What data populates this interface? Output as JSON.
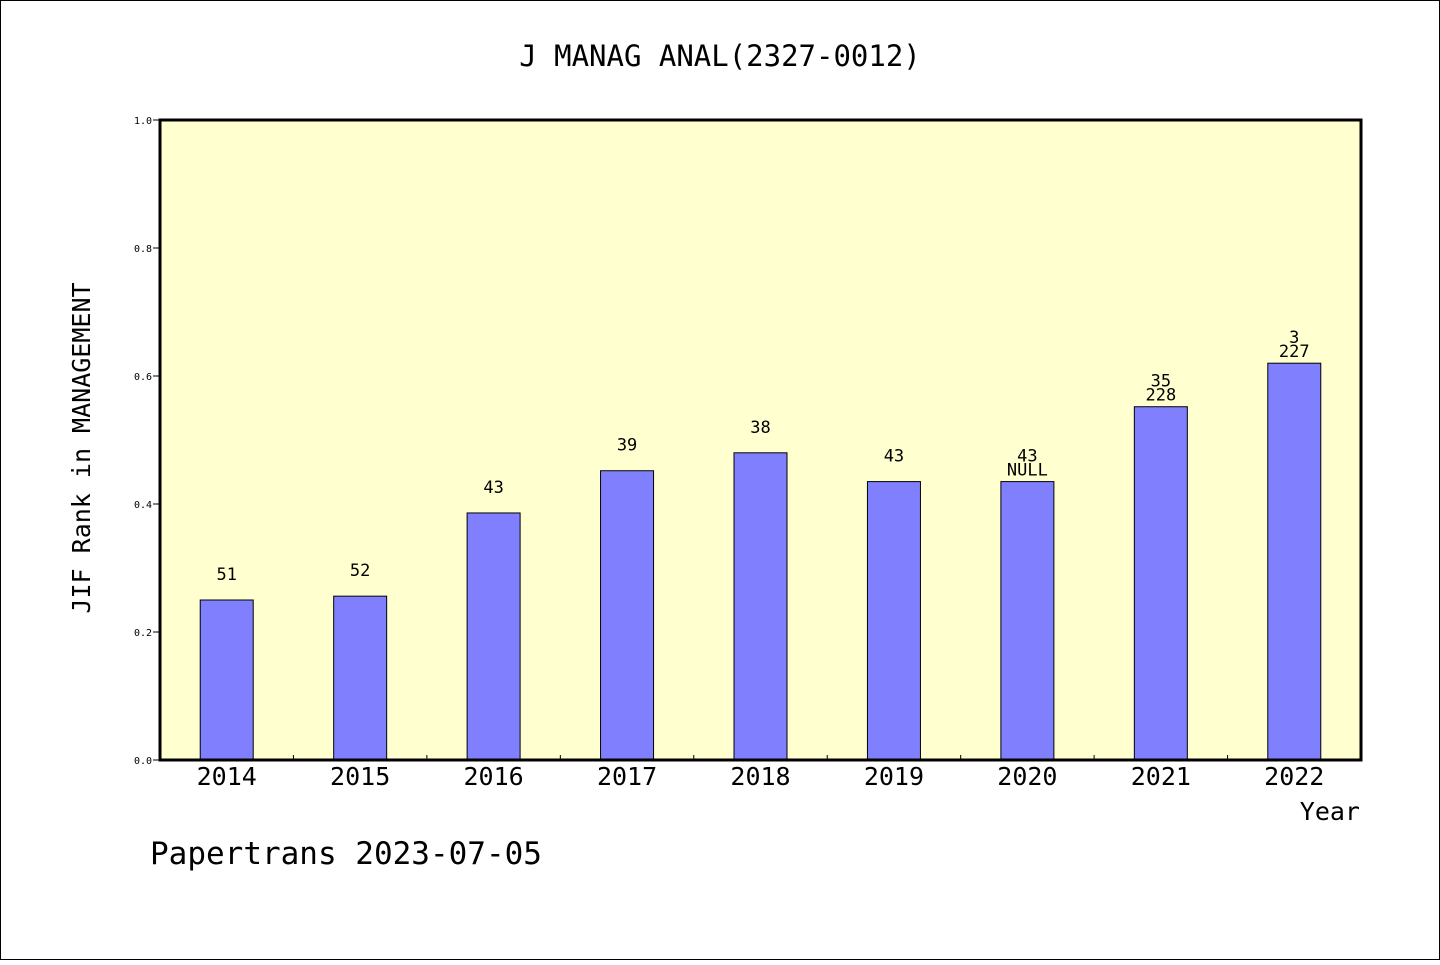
{
  "chart_data": {
    "type": "bar",
    "title": "J MANAG ANAL(2327-0012)",
    "ylabel": "JIF Rank in MANAGEMENT",
    "xlabel": "Year",
    "categories": [
      "2014",
      "2015",
      "2016",
      "2017",
      "2018",
      "2019",
      "2020",
      "2021",
      "2022"
    ],
    "values": [
      0.25,
      0.256,
      0.386,
      0.452,
      0.48,
      0.435,
      0.435,
      0.552,
      0.62
    ],
    "bar_labels": [
      [
        "51"
      ],
      [
        "52"
      ],
      [
        "43"
      ],
      [
        "39"
      ],
      [
        "38"
      ],
      [
        "43"
      ],
      [
        "43",
        "NULL"
      ],
      [
        "35",
        "228"
      ],
      [
        "3",
        "227"
      ]
    ],
    "ylim": [
      0,
      1.0
    ],
    "yticks": [
      "0.0",
      "0.2",
      "0.4",
      "0.6",
      "0.8",
      "1.0"
    ],
    "grid": false,
    "colors": {
      "bar": "#8080ff",
      "plot_background": "#ffffd0",
      "page_background": "#ffffff"
    }
  },
  "footer": "Papertrans 2023-07-05"
}
